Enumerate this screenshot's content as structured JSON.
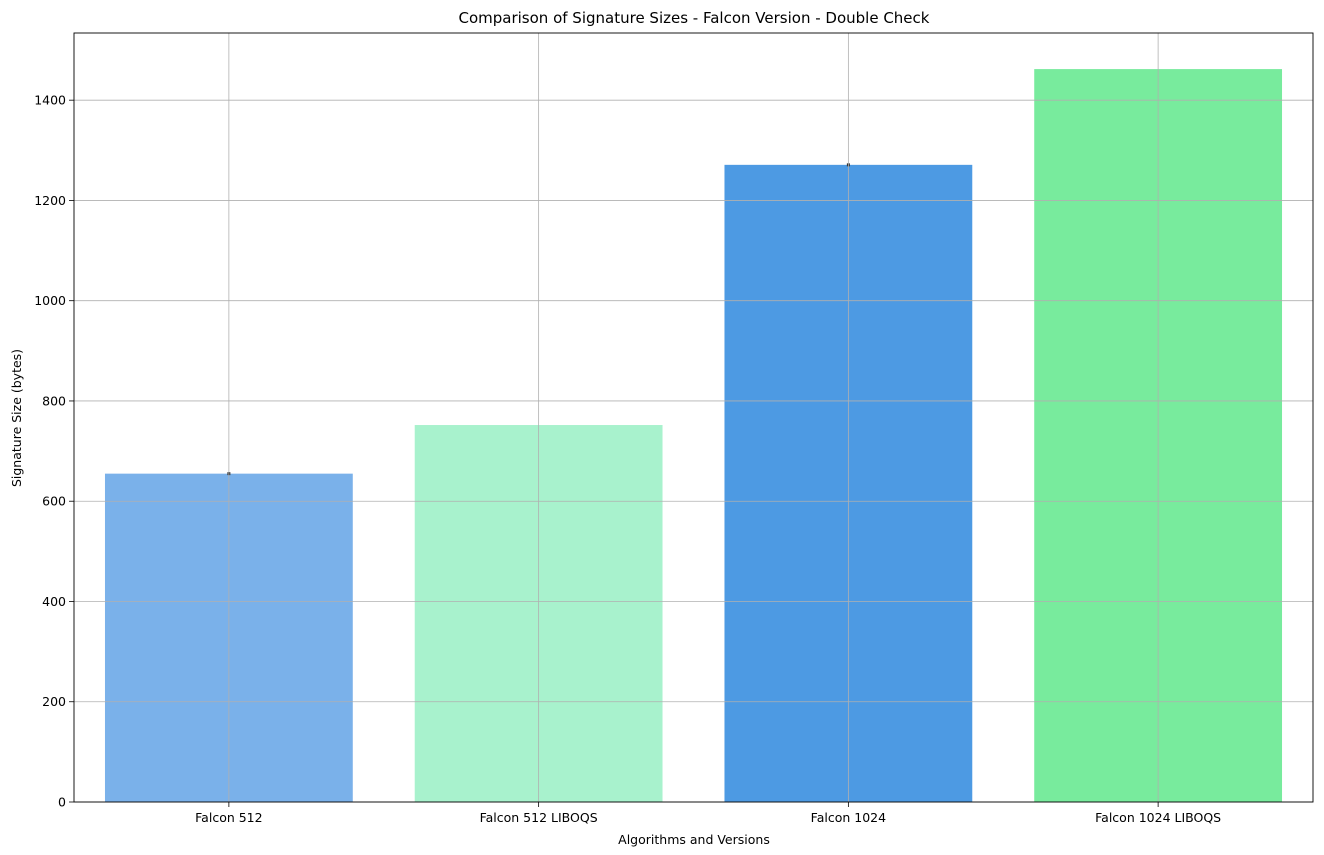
{
  "chart_data": {
    "type": "bar",
    "title": "Comparison of Signature Sizes - Falcon Version - Double Check",
    "xlabel": "Algorithms and Versions",
    "ylabel": "Signature Size (bytes)",
    "categories": [
      "Falcon 512",
      "Falcon 512 LIBOQS",
      "Falcon 1024",
      "Falcon 1024 LIBOQS"
    ],
    "values": [
      655,
      752,
      1271,
      1462
    ],
    "errors": [
      3,
      0,
      3,
      0
    ],
    "colors": [
      "#7ab1ea",
      "#a8f2cd",
      "#4d9ae3",
      "#78eb9d"
    ],
    "ylim": [
      0,
      1534
    ],
    "yticks": [
      0,
      200,
      400,
      600,
      800,
      1000,
      1200,
      1400
    ],
    "grid": true
  }
}
